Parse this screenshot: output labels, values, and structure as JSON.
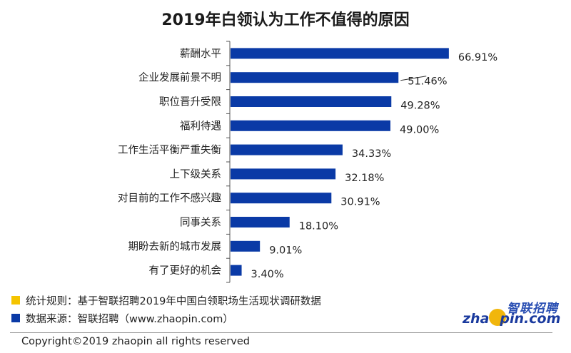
{
  "chart_data": {
    "type": "bar",
    "orientation": "horizontal",
    "title": "2019年白领认为工作不值得的原因",
    "categories": [
      "薪酬水平",
      "企业发展前景不明",
      "职位晋升受限",
      "福利待遇",
      "工作生活平衡严重失衡",
      "上下级关系",
      "对目前的工作不感兴趣",
      "同事关系",
      "期盼去新的城市发展",
      "有了更好的机会"
    ],
    "values": [
      66.91,
      51.46,
      49.28,
      49.0,
      34.33,
      32.18,
      30.91,
      18.1,
      9.01,
      3.4
    ],
    "value_labels": [
      "66.91%",
      "51.46%",
      "49.28%",
      "49.00%",
      "34.33%",
      "32.18%",
      "30.91%",
      "18.10%",
      "9.01%",
      "3.40%"
    ],
    "xlim": [
      0,
      70
    ],
    "bar_color": "#0a3aa6",
    "grid": false
  },
  "notes": [
    {
      "text": "统计规则：基于智联招聘2019年中国白领职场生活现状调研数据",
      "color": "#f5c400"
    },
    {
      "text": "数据来源：智联招聘（www.zhaopin.com）",
      "color": "#0a3aa6"
    }
  ],
  "copyright": "Copyright©2019 zhaopin all rights reserved",
  "logo": {
    "cn": "智联招聘",
    "en_left": "zha",
    "en_right": "pin.com"
  }
}
